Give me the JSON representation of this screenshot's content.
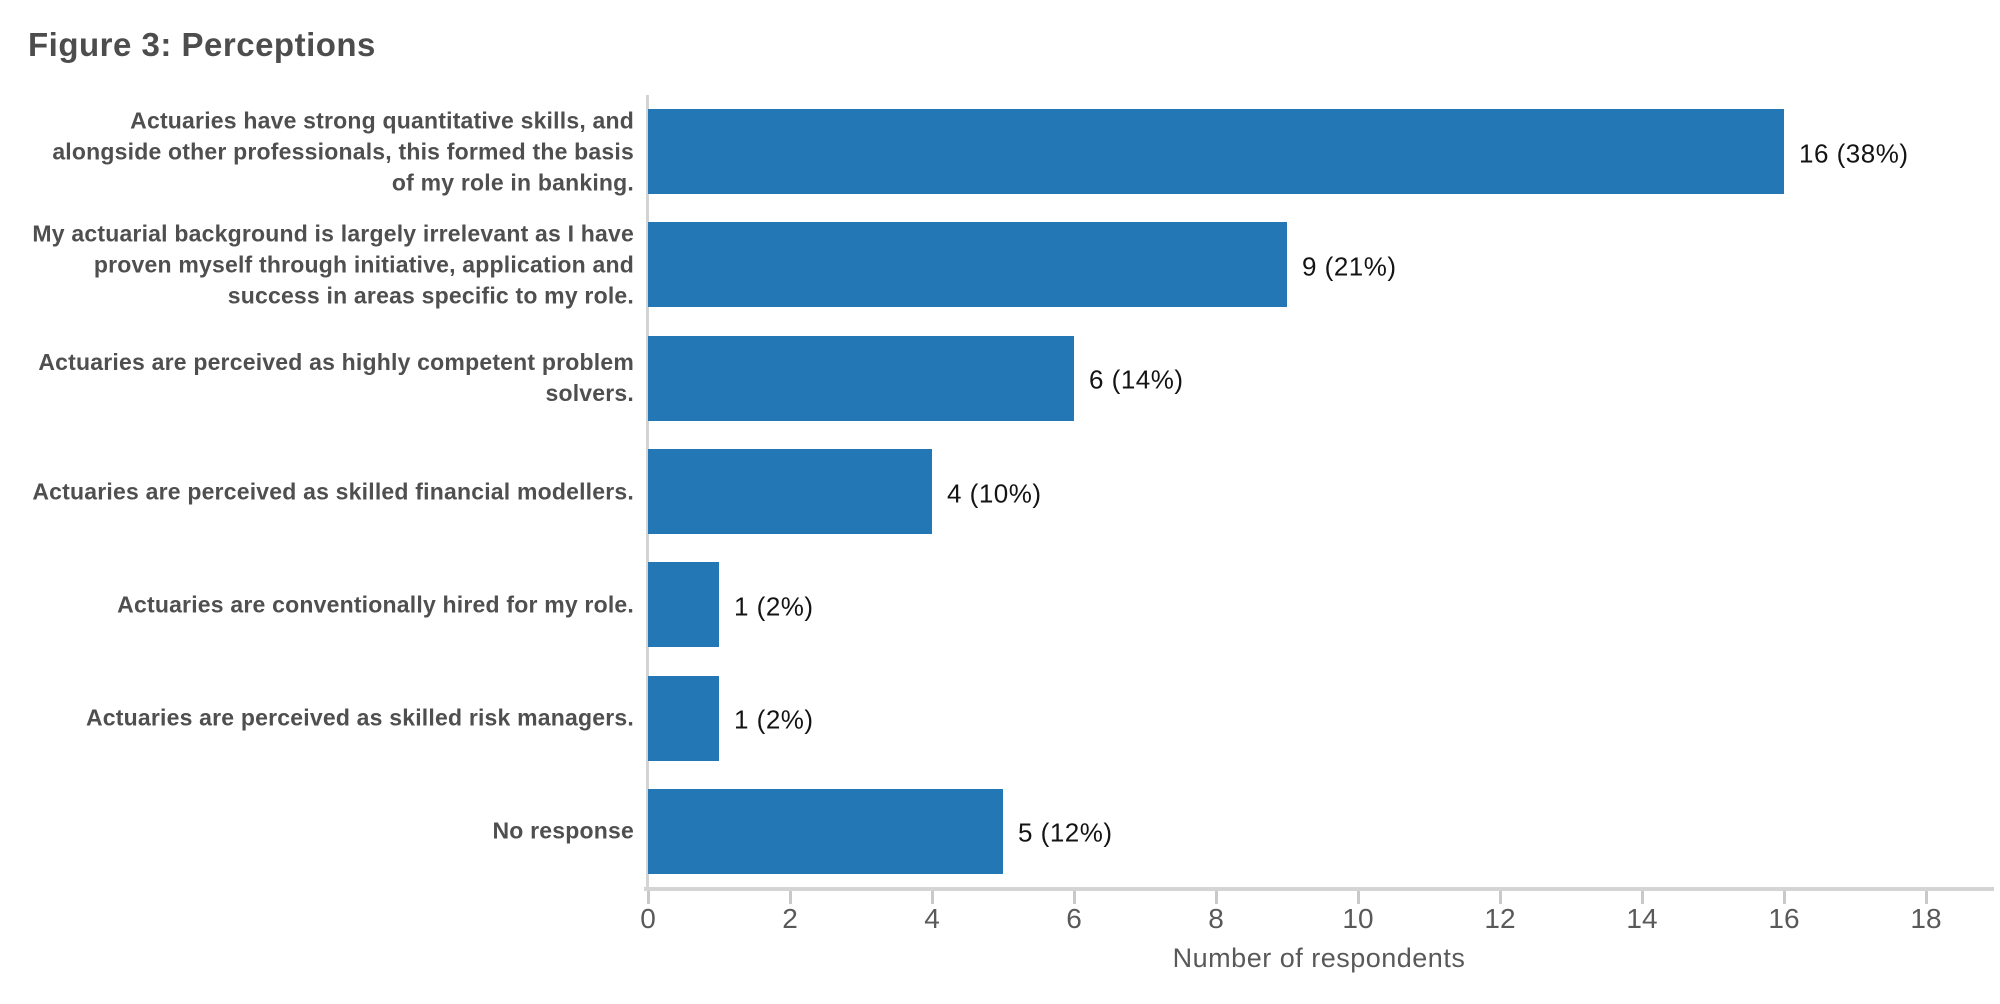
{
  "figure_title": "Figure 3: Perceptions",
  "chart_data": {
    "type": "bar",
    "orientation": "horizontal",
    "title": "Figure 3: Perceptions",
    "xlabel": "Number of respondents",
    "categories": [
      "Actuaries have strong quantitative skills, and alongside other professionals, this formed the basis of my role in banking.",
      "My actuarial background is largely irrelevant as I have proven myself through initiative, application and success in areas specific to my role.",
      "Actuaries are perceived as highly competent problem solvers.",
      "Actuaries are perceived as skilled financial modellers.",
      "Actuaries are conventionally hired for my role.",
      "Actuaries are perceived as skilled risk managers.",
      "No response"
    ],
    "values": [
      16,
      9,
      6,
      4,
      1,
      1,
      5
    ],
    "percentages": [
      38,
      21,
      14,
      10,
      2,
      2,
      12
    ],
    "value_labels": [
      "16 (38%)",
      "9 (21%)",
      "6 (14%)",
      "4 (10%)",
      "1 (2%)",
      "1 (2%)",
      "5 (12%)"
    ],
    "xticks": [
      0,
      2,
      4,
      6,
      8,
      10,
      12,
      14,
      16,
      18
    ],
    "xlim": [
      0,
      18.9
    ],
    "grid": false,
    "legend": false,
    "colors": {
      "bar": "#2377b4",
      "axis_line": "#d4d4d4",
      "category_text": "#4f4f4f",
      "tick_text": "#595959",
      "value_text": "#141414",
      "title_text": "#4d4d4d",
      "background": "#ffffff"
    }
  }
}
